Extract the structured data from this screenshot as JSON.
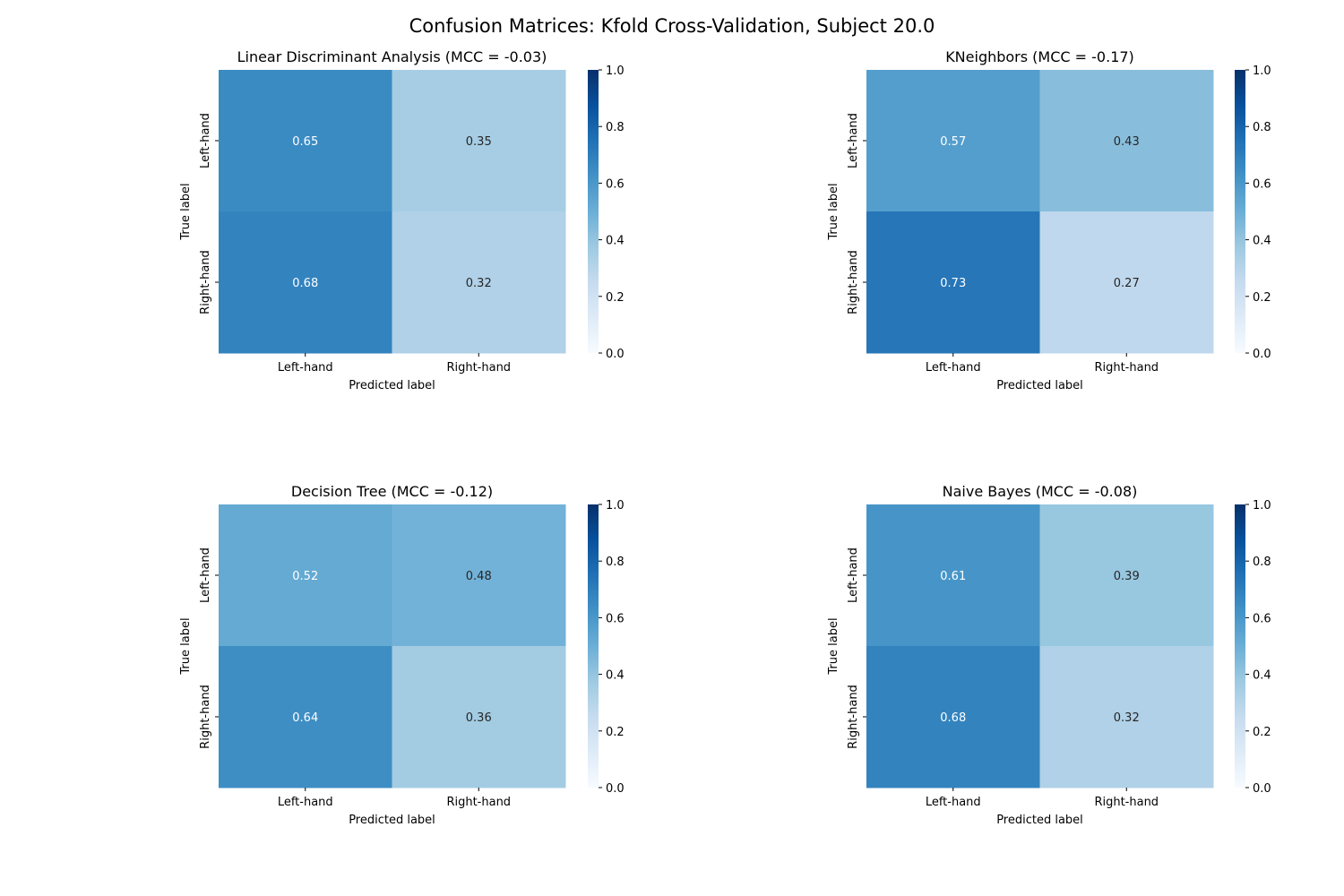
{
  "figure": {
    "suptitle": "Confusion Matrices: Kfold Cross-Validation, Subject 20.0"
  },
  "colormap": {
    "name": "Blues",
    "stops": [
      "#f7fbff",
      "#deebf7",
      "#c6dbef",
      "#9ecae1",
      "#6baed6",
      "#4292c6",
      "#2171b5",
      "#08519c",
      "#08306b"
    ],
    "text_light": "#ffffff",
    "text_dark": "#262626"
  },
  "chart_data": [
    {
      "type": "heatmap",
      "title": "Linear Discriminant Analysis (MCC = -0.03)",
      "xlabel": "Predicted label",
      "ylabel": "True label",
      "x_categories": [
        "Left-hand",
        "Right-hand"
      ],
      "y_categories": [
        "Left-hand",
        "Right-hand"
      ],
      "values": [
        [
          0.65,
          0.35
        ],
        [
          0.68,
          0.32
        ]
      ],
      "value_labels": [
        [
          "0.65",
          "0.35"
        ],
        [
          "0.68",
          "0.32"
        ]
      ],
      "vmin": 0.0,
      "vmax": 1.0,
      "colorbar_ticks": [
        "0.0",
        "0.2",
        "0.4",
        "0.6",
        "0.8",
        "1.0"
      ]
    },
    {
      "type": "heatmap",
      "title": "KNeighbors (MCC = -0.17)",
      "xlabel": "Predicted label",
      "ylabel": "True label",
      "x_categories": [
        "Left-hand",
        "Right-hand"
      ],
      "y_categories": [
        "Left-hand",
        "Right-hand"
      ],
      "values": [
        [
          0.57,
          0.43
        ],
        [
          0.73,
          0.27
        ]
      ],
      "value_labels": [
        [
          "0.57",
          "0.43"
        ],
        [
          "0.73",
          "0.27"
        ]
      ],
      "vmin": 0.0,
      "vmax": 1.0,
      "colorbar_ticks": [
        "0.0",
        "0.2",
        "0.4",
        "0.6",
        "0.8",
        "1.0"
      ]
    },
    {
      "type": "heatmap",
      "title": "Decision Tree (MCC = -0.12)",
      "xlabel": "Predicted label",
      "ylabel": "True label",
      "x_categories": [
        "Left-hand",
        "Right-hand"
      ],
      "y_categories": [
        "Left-hand",
        "Right-hand"
      ],
      "values": [
        [
          0.52,
          0.48
        ],
        [
          0.64,
          0.36
        ]
      ],
      "value_labels": [
        [
          "0.52",
          "0.48"
        ],
        [
          "0.64",
          "0.36"
        ]
      ],
      "vmin": 0.0,
      "vmax": 1.0,
      "colorbar_ticks": [
        "0.0",
        "0.2",
        "0.4",
        "0.6",
        "0.8",
        "1.0"
      ]
    },
    {
      "type": "heatmap",
      "title": "Naive Bayes (MCC = -0.08)",
      "xlabel": "Predicted label",
      "ylabel": "True label",
      "x_categories": [
        "Left-hand",
        "Right-hand"
      ],
      "y_categories": [
        "Left-hand",
        "Right-hand"
      ],
      "values": [
        [
          0.61,
          0.39
        ],
        [
          0.68,
          0.32
        ]
      ],
      "value_labels": [
        [
          "0.61",
          "0.39"
        ],
        [
          "0.68",
          "0.32"
        ]
      ],
      "vmin": 0.0,
      "vmax": 1.0,
      "colorbar_ticks": [
        "0.0",
        "0.2",
        "0.4",
        "0.6",
        "0.8",
        "1.0"
      ]
    }
  ]
}
